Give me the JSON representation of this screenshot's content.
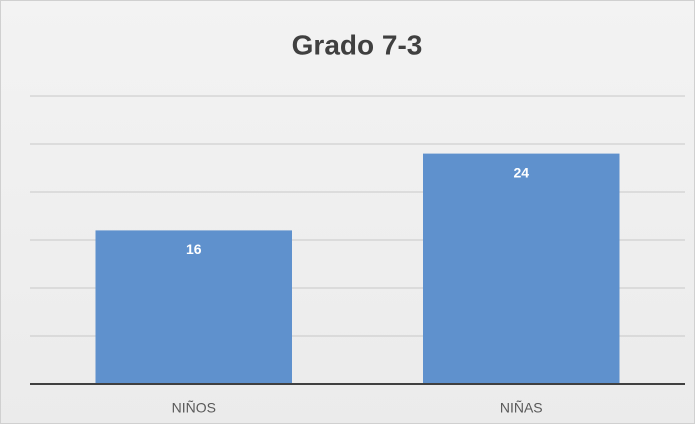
{
  "chart_data": {
    "type": "bar",
    "title": "Grado 7-3",
    "categories": [
      "NIÑOS",
      "NIÑAS"
    ],
    "values": [
      16,
      24
    ],
    "color": "#5f91cd",
    "ylim": [
      0,
      30
    ],
    "yticks": [
      0,
      5,
      10,
      15,
      20,
      25,
      30
    ],
    "grid": true
  }
}
